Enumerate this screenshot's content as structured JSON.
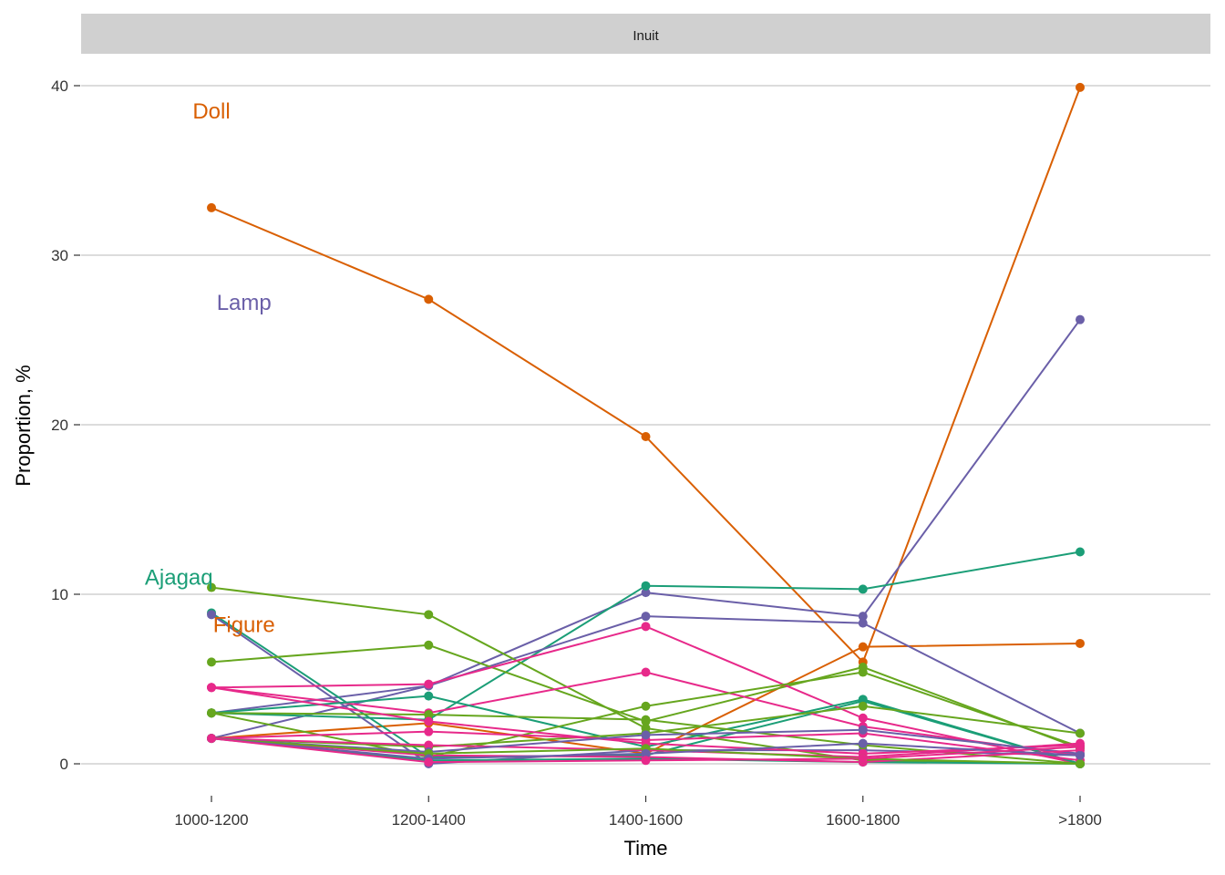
{
  "chart_data": {
    "type": "line",
    "facet_label": "Inuit",
    "xlabel": "Time",
    "ylabel": "Proportion, %",
    "categories": [
      "1000-1200",
      "1200-1400",
      "1400-1600",
      "1600-1800",
      ">1800"
    ],
    "ylim": [
      -1.5,
      41.5
    ],
    "yticks": [
      0,
      10,
      20,
      30,
      40
    ],
    "grid": "horizontal",
    "legend": "none",
    "colors": {
      "orange": "#D95F02",
      "teal": "#1B9E77",
      "purple": "#6A5FA8",
      "pink": "#E7298A",
      "green": "#66A61E"
    },
    "annotations": [
      {
        "text": "Doll",
        "color": "orange",
        "at": [
          0,
          38.5
        ]
      },
      {
        "text": "Lamp",
        "color": "purple",
        "at": [
          0.15,
          27.2
        ]
      },
      {
        "text": "Ajagaq",
        "color": "teal",
        "at": [
          -0.15,
          11
        ]
      },
      {
        "text": "Figure",
        "color": "orange",
        "at": [
          0.15,
          8.2
        ]
      }
    ],
    "series": [
      {
        "color": "orange",
        "values": [
          32.8,
          27.4,
          19.3,
          6.0,
          39.9
        ]
      },
      {
        "color": "purple",
        "values": [
          1.5,
          4.6,
          10.1,
          8.7,
          26.2
        ]
      },
      {
        "color": "teal",
        "values": [
          3.0,
          2.6,
          10.5,
          10.3,
          12.5
        ]
      },
      {
        "color": "orange",
        "values": [
          1.5,
          2.4,
          0.6,
          6.9,
          7.1
        ]
      },
      {
        "color": "purple",
        "values": [
          3.0,
          4.6,
          8.7,
          8.3,
          1.8
        ]
      },
      {
        "color": "teal",
        "values": [
          8.9,
          0.4,
          0.5,
          3.7,
          0.0
        ]
      },
      {
        "color": "purple",
        "values": [
          8.8,
          0.0,
          0.8,
          0.8,
          0.5
        ]
      },
      {
        "color": "green",
        "values": [
          10.4,
          8.8,
          2.1,
          0.2,
          0.0
        ]
      },
      {
        "color": "green",
        "values": [
          6.0,
          7.0,
          2.5,
          5.7,
          0.9
        ]
      },
      {
        "color": "pink",
        "values": [
          4.5,
          4.7,
          8.1,
          2.7,
          0.0
        ]
      },
      {
        "color": "pink",
        "values": [
          4.5,
          3.0,
          5.4,
          2.2,
          0.5
        ]
      },
      {
        "color": "teal",
        "values": [
          3.0,
          4.0,
          1.0,
          3.8,
          0.0
        ]
      },
      {
        "color": "green",
        "values": [
          3.0,
          0.4,
          3.4,
          5.4,
          1.0
        ]
      },
      {
        "color": "green",
        "values": [
          1.5,
          1.0,
          1.8,
          3.4,
          1.8
        ]
      },
      {
        "color": "green",
        "values": [
          3.0,
          2.9,
          2.6,
          1.1,
          0.0
        ]
      },
      {
        "color": "pink",
        "values": [
          1.5,
          1.9,
          1.4,
          1.8,
          0.2
        ]
      },
      {
        "color": "pink",
        "values": [
          1.5,
          1.1,
          0.8,
          0.4,
          1.2
        ]
      },
      {
        "color": "pink",
        "values": [
          4.5,
          2.5,
          1.2,
          0.6,
          1.1
        ]
      },
      {
        "color": "purple",
        "values": [
          1.5,
          0.7,
          1.7,
          2.0,
          0.6
        ]
      },
      {
        "color": "teal",
        "values": [
          1.5,
          0.2,
          0.3,
          0.1,
          0.0
        ]
      },
      {
        "color": "pink",
        "values": [
          1.5,
          0.5,
          0.4,
          0.1,
          0.8
        ]
      },
      {
        "color": "green",
        "values": [
          1.5,
          0.6,
          0.9,
          0.3,
          0.0
        ]
      },
      {
        "color": "purple",
        "values": [
          1.5,
          0.3,
          0.6,
          1.2,
          0.5
        ]
      },
      {
        "color": "pink",
        "values": [
          1.5,
          0.1,
          0.2,
          0.3,
          1.0
        ]
      }
    ]
  }
}
